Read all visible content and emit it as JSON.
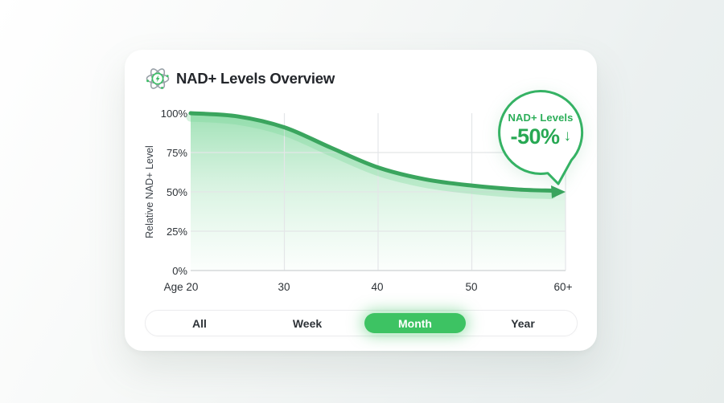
{
  "header": {
    "title": "NAD+ Levels Overview",
    "icon": "atom-energy-icon"
  },
  "chart_data": {
    "type": "area",
    "title": "NAD+ Levels Overview",
    "xlabel": "Age",
    "ylabel": "Relative NAD+ Level",
    "x": [
      20,
      25,
      30,
      35,
      40,
      45,
      50,
      55,
      60
    ],
    "series": [
      {
        "name": "Relative NAD+ level (%)",
        "values": [
          100,
          98,
          91,
          78,
          65.5,
          58,
          54,
          51.5,
          50.5
        ]
      }
    ],
    "xlim": [
      20,
      60
    ],
    "ylim": [
      0,
      100
    ],
    "x_ticks": [
      {
        "value": 20,
        "label": "Age 20"
      },
      {
        "value": 30,
        "label": "30"
      },
      {
        "value": 40,
        "label": "40"
      },
      {
        "value": 50,
        "label": "50"
      },
      {
        "value": 60,
        "label": "60+"
      }
    ],
    "y_ticks": [
      {
        "value": 0,
        "label": "0%"
      },
      {
        "value": 25,
        "label": "25%"
      },
      {
        "value": 50,
        "label": "50%"
      },
      {
        "value": 75,
        "label": "75%"
      },
      {
        "value": 100,
        "label": "100%"
      }
    ],
    "grid": {
      "on": true,
      "x_lines": [
        30,
        40,
        50,
        60
      ],
      "y_lines": [
        25,
        50,
        75
      ],
      "color": "#e4e6e8",
      "axis_color": "#d5d8da"
    },
    "line_color": "#3aa55e",
    "line_glow_color": "rgba(122,216,152,0.32)",
    "area_top_color": "rgba(92,204,130,0.58)",
    "area_mid_color": "rgba(124,214,154,0.30)",
    "area_bottom_color": "rgba(150,225,175,0.03)",
    "end_arrow": true,
    "legend": "none"
  },
  "callout": {
    "label": "NAD+ Levels",
    "value": "-50%",
    "direction_icon": "↓",
    "text_color": "#28ab55",
    "border_color": "#35b264"
  },
  "time_filter": {
    "items": [
      {
        "label": "All",
        "active": false
      },
      {
        "label": "Week",
        "active": false
      },
      {
        "label": "Month",
        "active": true
      },
      {
        "label": "Year",
        "active": false
      }
    ],
    "active_color": "#3dc363"
  }
}
